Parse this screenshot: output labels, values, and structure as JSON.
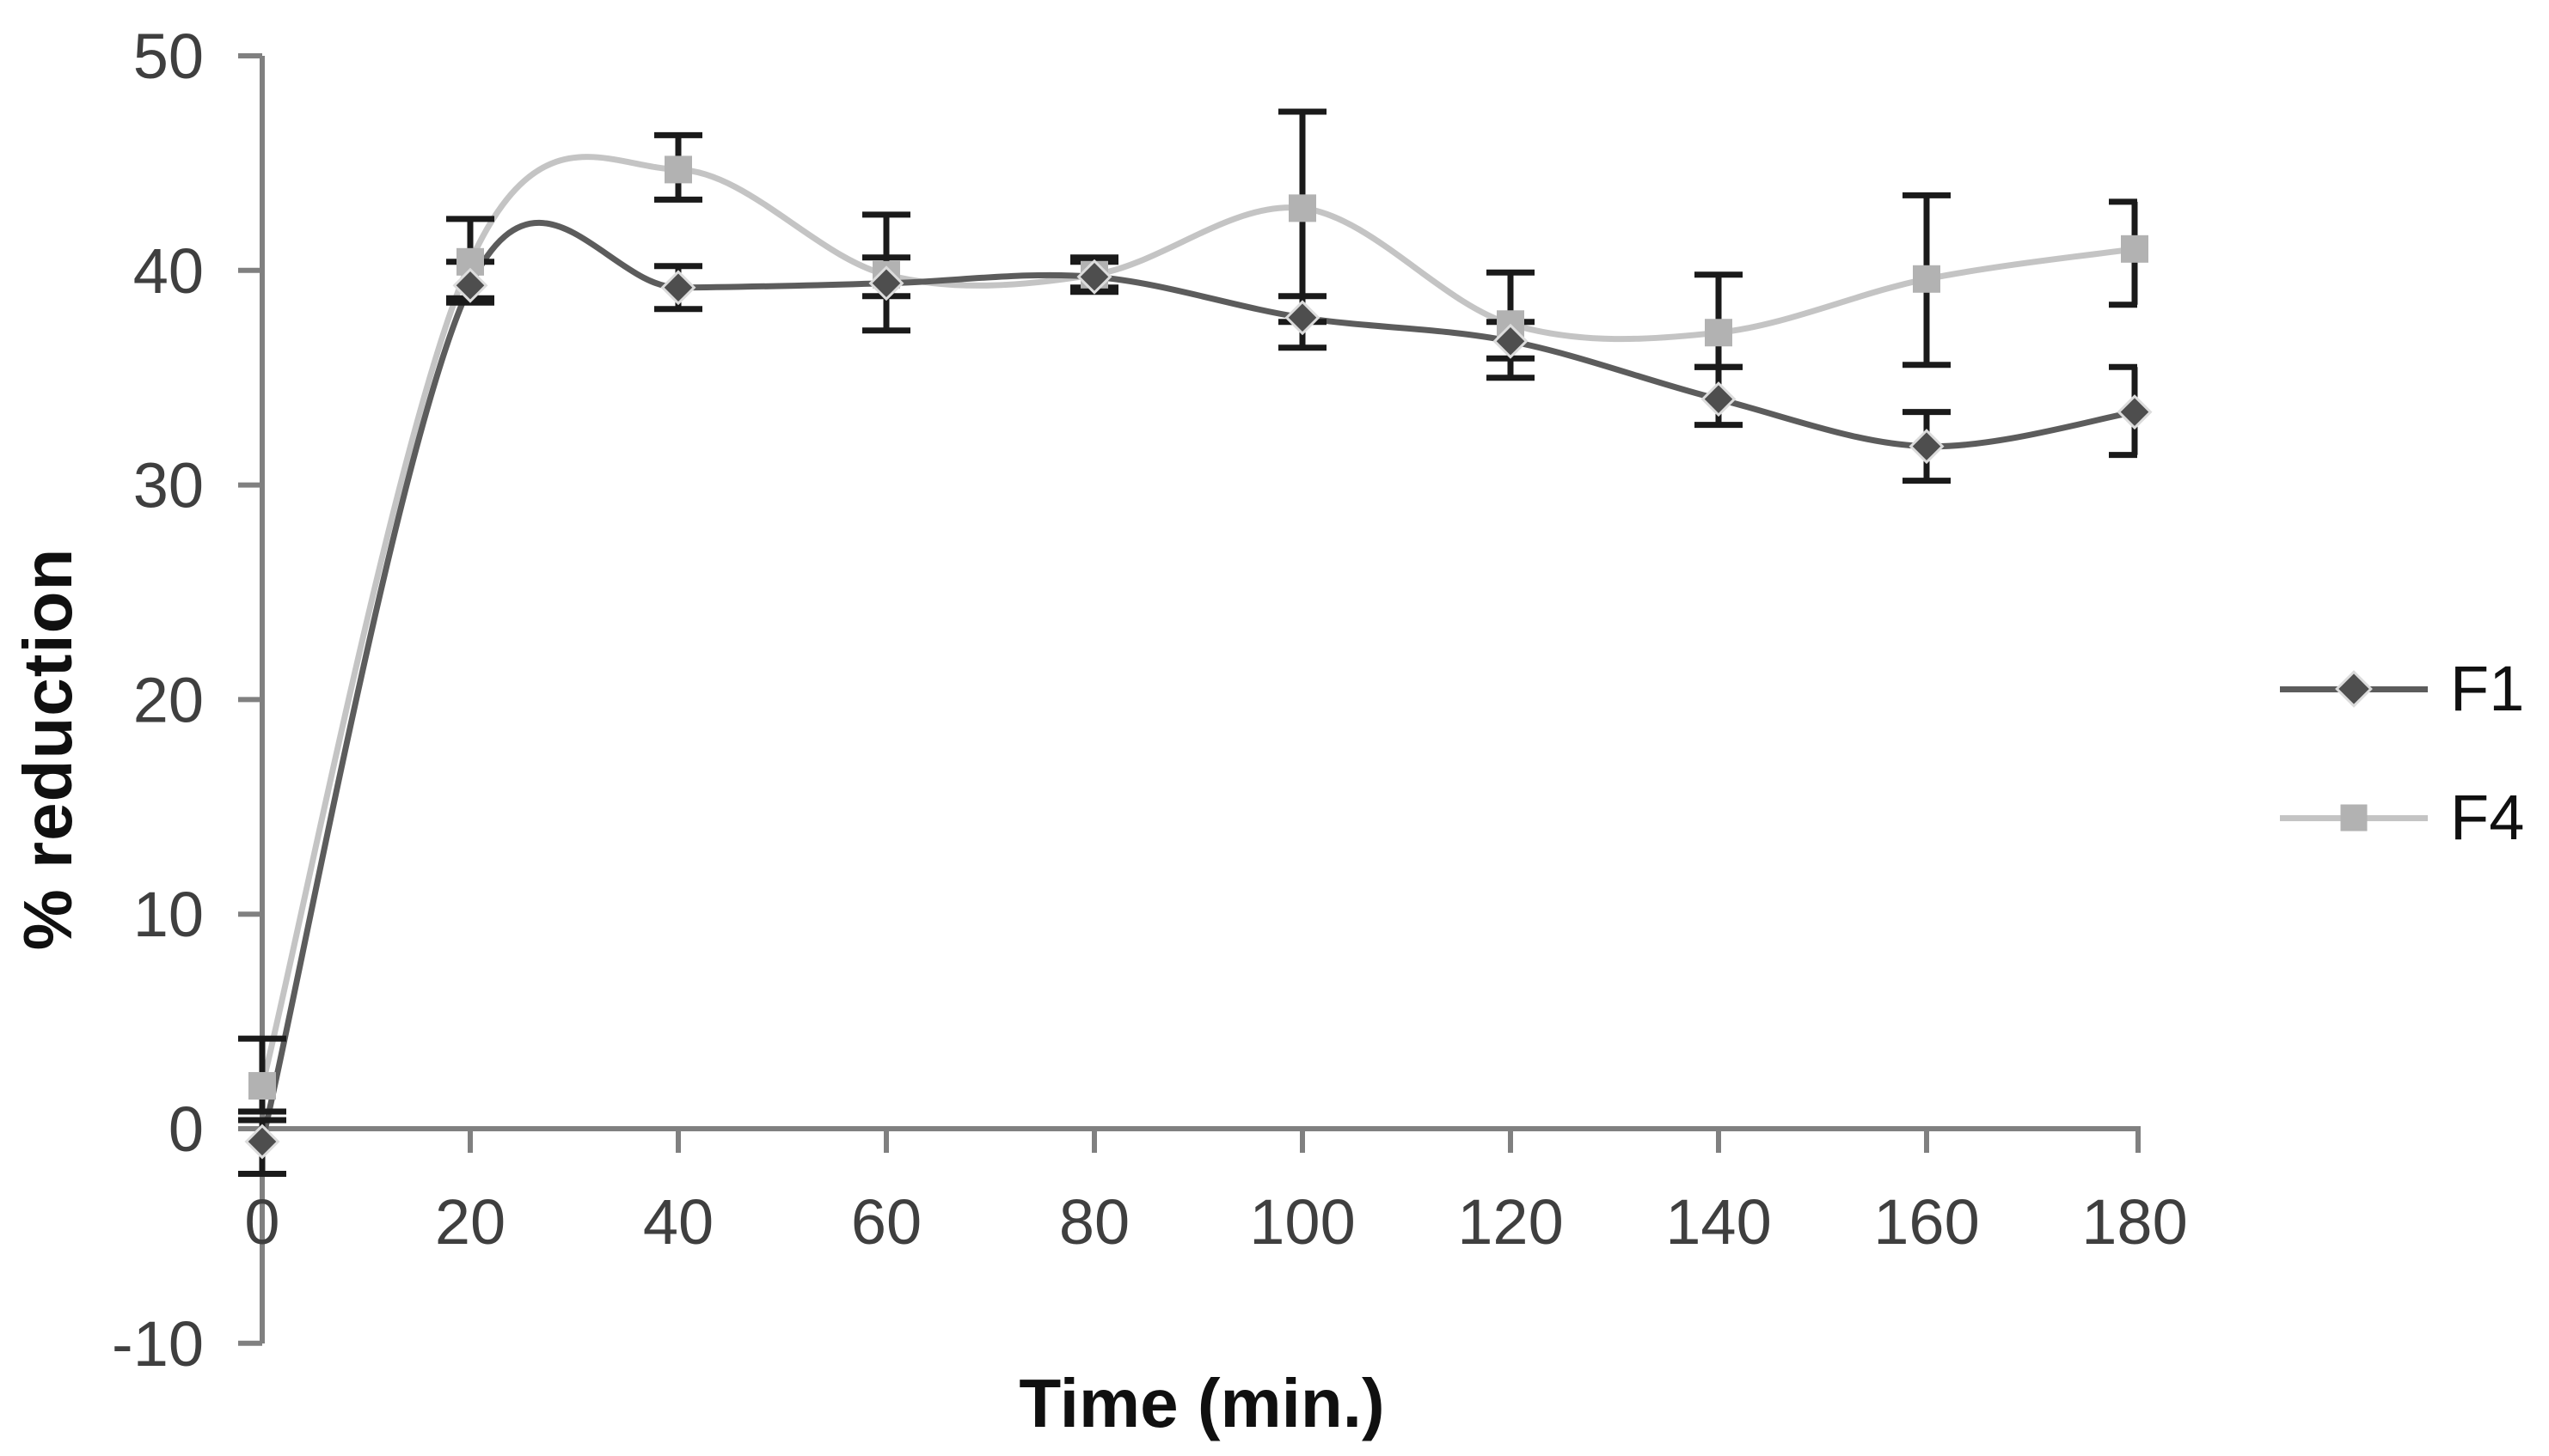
{
  "chart_data": {
    "type": "line",
    "title": "",
    "xlabel": "Time (min.)",
    "ylabel": "% reduction",
    "x": [
      0,
      20,
      40,
      60,
      80,
      100,
      120,
      140,
      160,
      180
    ],
    "xlim": [
      0,
      180
    ],
    "ylim": [
      -10,
      50
    ],
    "x_tick_labels": [
      "0",
      "20",
      "40",
      "60",
      "80",
      "100",
      "120",
      "140",
      "160",
      "180"
    ],
    "y_tick_values": [
      50,
      40,
      30,
      20,
      10,
      0,
      -10
    ],
    "y_tick_labels": [
      "50",
      "40",
      "30",
      "20",
      "10",
      "0",
      "-10"
    ],
    "grid": "off",
    "legend_position": "right",
    "error_bars": "vertical, black caps; right-edge points use bracket-style caps",
    "series": [
      {
        "name": "F1",
        "marker": "diamond",
        "color": "#5c5c5c",
        "marker_color": "#4e4e4e",
        "values": [
          -0.6,
          39.3,
          39.2,
          39.4,
          39.7,
          37.8,
          36.7,
          34.0,
          31.8,
          33.4
        ],
        "err_up": [
          1.0,
          1.1,
          1.0,
          1.2,
          0.7,
          1.0,
          0.9,
          1.5,
          1.6,
          2.1
        ],
        "err_down": [
          1.5,
          0.8,
          1.0,
          2.2,
          0.7,
          1.4,
          1.7,
          1.2,
          1.6,
          2.0
        ]
      },
      {
        "name": "F4",
        "marker": "square",
        "color": "#c4c4c4",
        "marker_color": "#b2b2b2",
        "values": [
          2.0,
          40.4,
          44.7,
          39.8,
          39.8,
          42.9,
          37.5,
          37.1,
          39.6,
          41.0
        ],
        "err_up": [
          2.2,
          2.0,
          1.6,
          2.8,
          0.8,
          4.5,
          2.4,
          2.7,
          3.9,
          2.2
        ],
        "err_down": [
          1.2,
          1.7,
          1.4,
          1.0,
          0.6,
          5.3,
          1.6,
          1.6,
          4.0,
          2.6
        ]
      }
    ],
    "colors": {
      "axis": "#808080",
      "tick_text": "#3f3f3f",
      "error_bar": "#1a1a1a",
      "title_text": "#101010"
    }
  }
}
